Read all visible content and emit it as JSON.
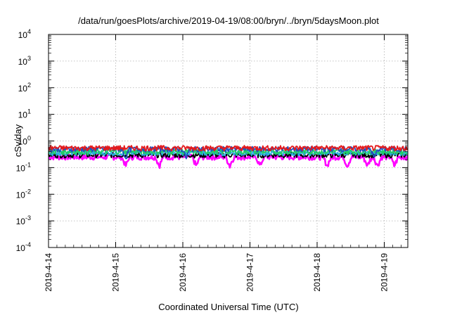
{
  "chart_data": {
    "type": "line",
    "title": "/data/run/goesPlots/archive/2019-04-19/08:00/bryn/../bryn/5daysMoon.plot",
    "xlabel": "Coordinated Universal Time (UTC)",
    "ylabel": "cSv/day",
    "yscale": "log",
    "ylim": [
      0.0001,
      10000
    ],
    "xlim": [
      "2019-04-14",
      "2019-04-19 09:00"
    ],
    "grid": true,
    "y_ticks": [
      {
        "base": "10",
        "exp": "4",
        "value": 10000
      },
      {
        "base": "10",
        "exp": "3",
        "value": 1000
      },
      {
        "base": "10",
        "exp": "2",
        "value": 100
      },
      {
        "base": "10",
        "exp": "1",
        "value": 10
      },
      {
        "base": "10",
        "exp": "0",
        "value": 1
      },
      {
        "base": "10",
        "exp": "-1",
        "value": 0.1
      },
      {
        "base": "10",
        "exp": "-2",
        "value": 0.01
      },
      {
        "base": "10",
        "exp": "-3",
        "value": 0.001
      },
      {
        "base": "10",
        "exp": "-4",
        "value": 0.0001
      }
    ],
    "x_ticks": [
      "2019-4-14",
      "2019-4-15",
      "2019-4-16",
      "2019-4-17",
      "2019-4-18",
      "2019-4-19"
    ],
    "series": [
      {
        "color": "#e41a1c",
        "approx_level": 0.55,
        "dips": []
      },
      {
        "color": "#1f4fbf",
        "approx_level": 0.5,
        "dips": [
          1.15,
          2.05,
          4.85
        ]
      },
      {
        "color": "#22cc66",
        "approx_level": 0.4,
        "dips": []
      },
      {
        "color": "#2ab0e0",
        "approx_level": 0.36,
        "dips": []
      },
      {
        "color": "#000000",
        "approx_level": 0.3,
        "dips": []
      },
      {
        "color": "#ff00ff",
        "approx_level": 0.25,
        "dips": [
          1.15,
          1.65,
          2.2,
          2.7,
          3.15,
          4.15,
          4.45,
          4.75,
          4.9,
          5.15
        ]
      }
    ]
  }
}
